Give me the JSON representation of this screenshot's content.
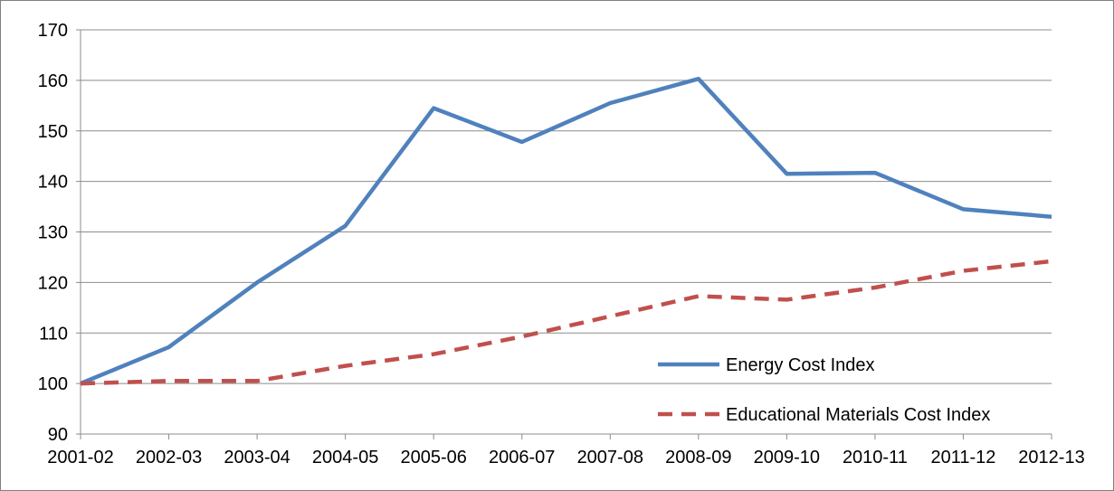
{
  "chart_data": {
    "type": "line",
    "title": "",
    "categories": [
      "2001-02",
      "2002-03",
      "2003-04",
      "2004-05",
      "2005-06",
      "2006-07",
      "2007-08",
      "2008-09",
      "2009-10",
      "2010-11",
      "2011-12",
      "2012-13"
    ],
    "series": [
      {
        "name": "Energy Cost Index",
        "color": "#4F81BD",
        "dash": "solid",
        "values": [
          100,
          107.2,
          120,
          131.2,
          154.5,
          147.8,
          155.5,
          160.3,
          141.5,
          141.7,
          134.5,
          133
        ]
      },
      {
        "name": "Educational Materials Cost Index",
        "color": "#C0504D",
        "dash": "dashed",
        "values": [
          100,
          100.5,
          100.5,
          103.5,
          105.8,
          109.3,
          113.3,
          117.3,
          116.6,
          119,
          122.3,
          124.2
        ]
      }
    ],
    "ylim": [
      90,
      170
    ],
    "yticks": [
      90,
      100,
      110,
      120,
      130,
      140,
      150,
      160,
      170
    ],
    "grid": true,
    "legend_position": "bottom-right"
  }
}
